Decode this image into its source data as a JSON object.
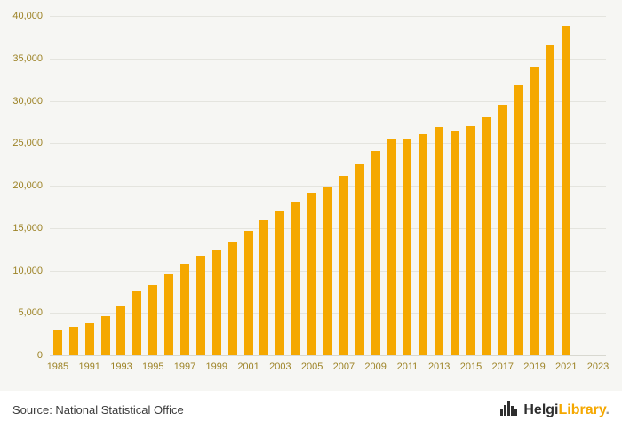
{
  "chart_data": {
    "type": "bar",
    "title": "",
    "categories": [
      "1985",
      "1990",
      "1991",
      "1992",
      "1993",
      "1994",
      "1995",
      "1996",
      "1997",
      "1998",
      "1999",
      "2000",
      "2001",
      "2002",
      "2003",
      "2004",
      "2005",
      "2006",
      "2007",
      "2008",
      "2009",
      "2010",
      "2011",
      "2012",
      "2013",
      "2014",
      "2015",
      "2016",
      "2017",
      "2018",
      "2019",
      "2020",
      "2021",
      "2022",
      "2023"
    ],
    "values": [
      3000,
      3300,
      3800,
      4600,
      5900,
      7500,
      8300,
      9600,
      10800,
      11700,
      12500,
      13300,
      14700,
      15900,
      17000,
      18100,
      19200,
      19900,
      21100,
      22500,
      24100,
      25400,
      25500,
      26100,
      26900,
      26500,
      27000,
      28100,
      29500,
      31800,
      34000,
      36500,
      38900,
      null,
      null
    ],
    "ylim": [
      0,
      40000
    ],
    "ytick_step": 5000,
    "ytick_labels": [
      "0",
      "5,000",
      "10,000",
      "15,000",
      "20,000",
      "25,000",
      "30,000",
      "35,000",
      "40,000"
    ],
    "xtick_labels": [
      "1985",
      "1991",
      "1993",
      "1995",
      "1997",
      "1999",
      "2001",
      "2003",
      "2005",
      "2007",
      "2009",
      "2011",
      "2013",
      "2015",
      "2017",
      "2019",
      "2021",
      "2023"
    ],
    "grid": "horizontal",
    "legend": "none"
  },
  "colors": {
    "background": "#f6f6f3",
    "bar": "#f5a800",
    "gridline": "#e4e4de",
    "axis_text": "#9d8326",
    "source_text": "#3c3c3c",
    "logo_dark": "#2e2e2e",
    "logo_orange": "#f5a800"
  },
  "footer": {
    "source": "Source: National Statistical Office",
    "logo": {
      "icon": "bar-chart-logo-icon",
      "part1": "Helgi",
      "part2": "Library",
      "suffix": "."
    }
  }
}
